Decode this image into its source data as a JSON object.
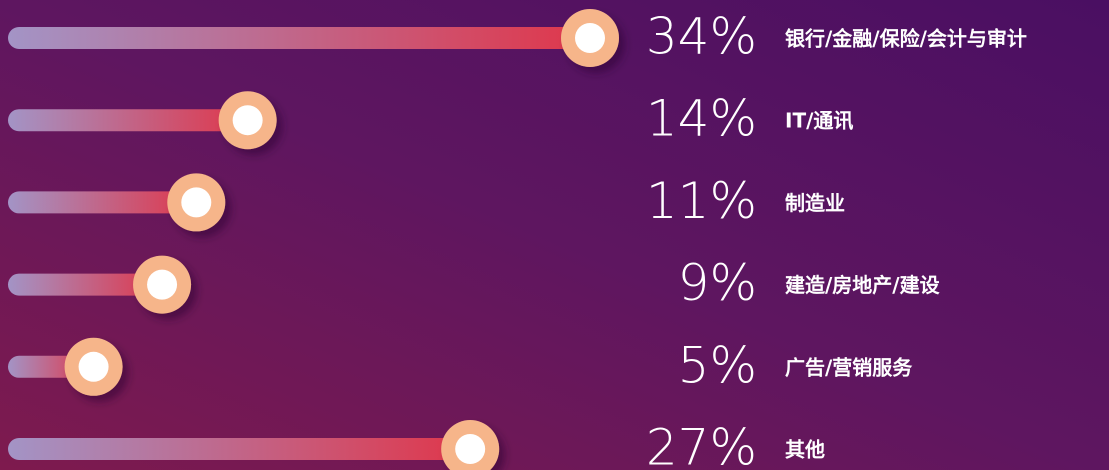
{
  "chart_data": {
    "type": "slider-bar",
    "categories": [
      "银行/金融/保险/会计与审计",
      "IT/通讯",
      "制造业",
      "建造/房地产/建设",
      "广告/营销服务",
      "其他"
    ],
    "values": [
      34,
      14,
      11,
      9,
      5,
      27
    ],
    "value_labels": [
      "34%",
      "14%",
      "11%",
      "9%",
      "5%",
      "27%"
    ],
    "color": "#e0364a"
  }
}
